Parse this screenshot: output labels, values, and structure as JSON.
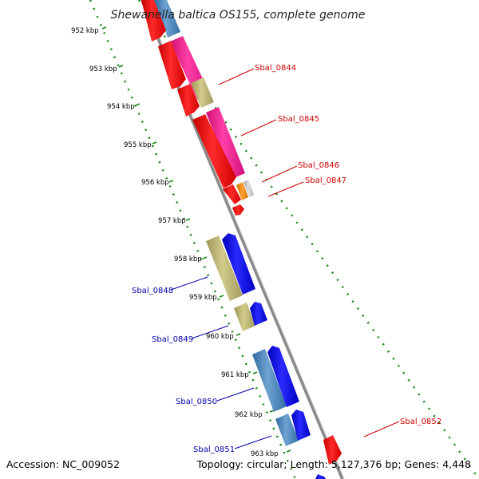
{
  "title": "Shewanella baltica OS155, complete genome",
  "footer": {
    "accession": "Accession: NC_009052",
    "summary": "Topology: circular; Length: 5,127,376 bp; Genes: 4,448"
  },
  "colors": {
    "backbone": "#8a8a8a",
    "ticks": "#118811",
    "label_forward": "#cc0000",
    "label_reverse": "#0000aa",
    "red": "#ff0000",
    "magenta": "#ff1493",
    "khaki": "#b5ad6b",
    "orange": "#ff8c00",
    "gray": "#c0c0c0",
    "steelblue": "#4682b4",
    "blue": "#0000ee"
  },
  "kbp_ticks": [
    "952 kbp",
    "953 kbp",
    "954 kbp",
    "955 kbp",
    "956 kbp",
    "957 kbp",
    "958 kbp",
    "959 kbp",
    "960 kbp",
    "961 kbp",
    "962 kbp",
    "963 kbp"
  ],
  "labels_forward": [
    "Sbal_0844",
    "Sbal_0845",
    "Sbal_0846",
    "Sbal_0847",
    "Sbal_0852"
  ],
  "labels_reverse": [
    "Sbal_0848",
    "Sbal_0849",
    "Sbal_0850",
    "Sbal_0851"
  ]
}
